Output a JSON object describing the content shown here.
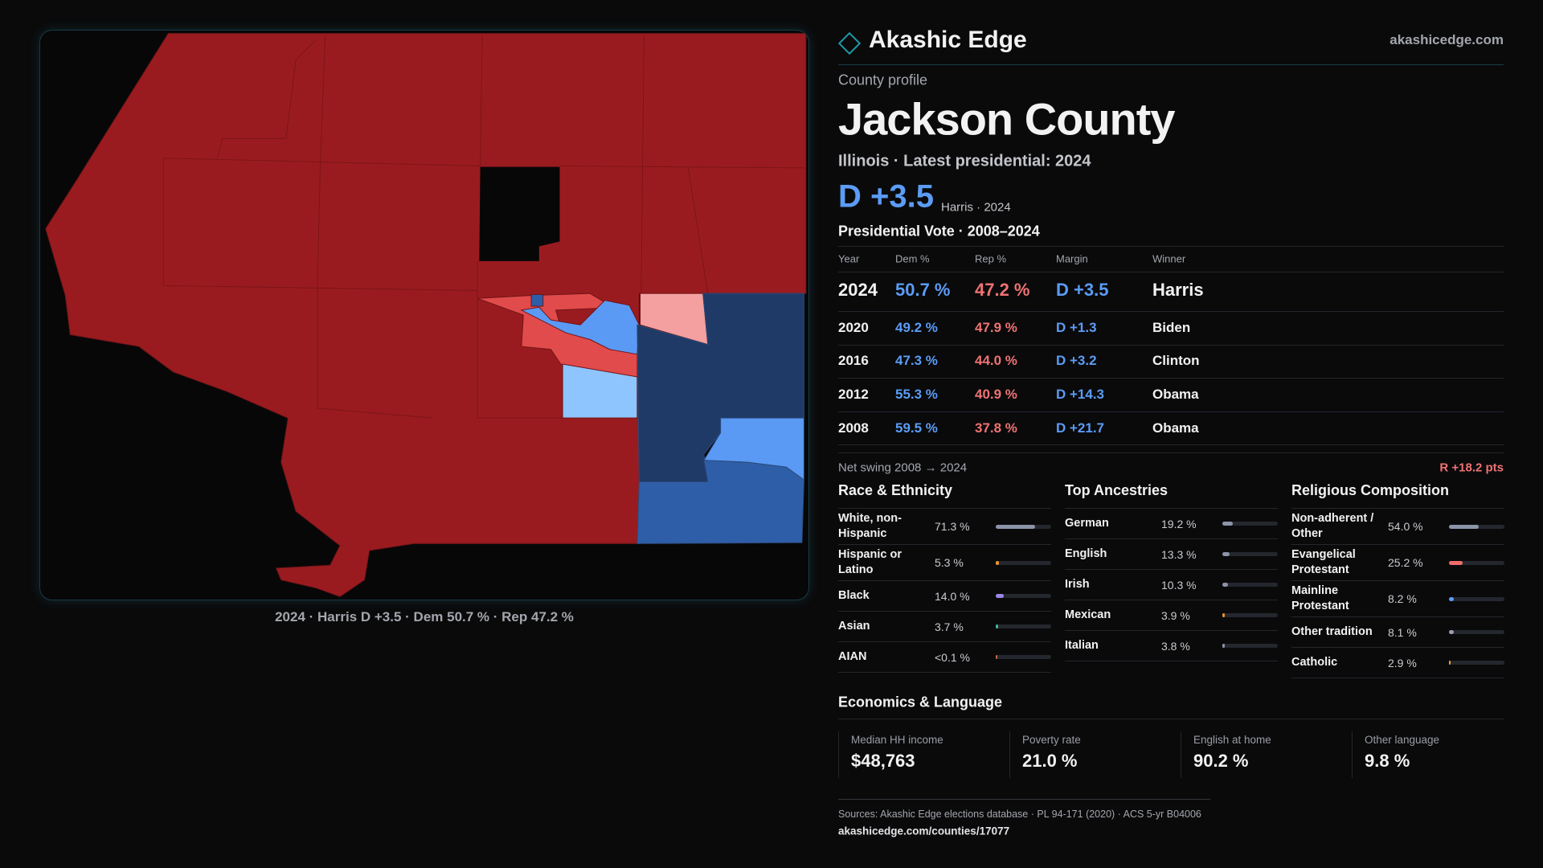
{
  "brand": {
    "name": "Akashic Edge",
    "domain": "akashicedge.com"
  },
  "map": {
    "caption": "2024 · Harris D +3.5 · Dem 50.7 % · Rep 47.2 %"
  },
  "profile": {
    "kicker": "County profile",
    "title": "Jackson County",
    "subtitle": "Illinois · Latest presidential: 2024",
    "margin": "D +3.5",
    "margin_note": "Harris · 2024"
  },
  "votes": {
    "title": "Presidential Vote · 2008–2024",
    "columns": [
      "Year",
      "Dem %",
      "Rep %",
      "Margin",
      "Winner"
    ],
    "rows": [
      [
        "2024",
        "50.7 %",
        "47.2 %",
        "D +3.5",
        "Harris"
      ],
      [
        "2020",
        "49.2 %",
        "47.9 %",
        "D +1.3",
        "Biden"
      ],
      [
        "2016",
        "47.3 %",
        "44.0 %",
        "D +3.2",
        "Clinton"
      ],
      [
        "2012",
        "55.3 %",
        "40.9 %",
        "D +14.3",
        "Obama"
      ],
      [
        "2008",
        "59.5 %",
        "37.8 %",
        "D +21.7",
        "Obama"
      ]
    ]
  },
  "swing": {
    "label": "Net swing 2008 → 2024",
    "value": "R +18.2 pts"
  },
  "demographics": [
    {
      "title": "Race & Ethnicity",
      "xlim": [
        0,
        100
      ],
      "items": [
        {
          "name": "White, non-Hispanic",
          "value": 71.3,
          "value_label": "71.3 %",
          "color": "#8c94a8"
        },
        {
          "name": "Hispanic or Latino",
          "value": 5.3,
          "value_label": "5.3 %",
          "color": "#e8922e"
        },
        {
          "name": "Black",
          "value": 14.0,
          "value_label": "14.0 %",
          "color": "#9b87e8"
        },
        {
          "name": "Asian",
          "value": 3.7,
          "value_label": "3.7 %",
          "color": "#3bb59a"
        },
        {
          "name": "AIAN",
          "value": 0.05,
          "value_label": "<0.1 %",
          "color": "#c46a4a"
        }
      ]
    },
    {
      "title": "Top Ancestries",
      "xlim": [
        0,
        100
      ],
      "items": [
        {
          "name": "German",
          "value": 19.2,
          "value_label": "19.2 %",
          "color": "#8c94a8"
        },
        {
          "name": "English",
          "value": 13.3,
          "value_label": "13.3 %",
          "color": "#8c94a8"
        },
        {
          "name": "Irish",
          "value": 10.3,
          "value_label": "10.3 %",
          "color": "#8c94a8"
        },
        {
          "name": "Mexican",
          "value": 3.9,
          "value_label": "3.9 %",
          "color": "#e8922e"
        },
        {
          "name": "Italian",
          "value": 3.8,
          "value_label": "3.8 %",
          "color": "#8c94a8"
        }
      ]
    },
    {
      "title": "Religious Composition",
      "xlim": [
        0,
        100
      ],
      "items": [
        {
          "name": "Non-adherent / Other",
          "value": 54.0,
          "value_label": "54.0 %",
          "color": "#8c94a8"
        },
        {
          "name": "Evangelical Protestant",
          "value": 25.2,
          "value_label": "25.2 %",
          "color": "#ef6b6b"
        },
        {
          "name": "Mainline Protestant",
          "value": 8.2,
          "value_label": "8.2 %",
          "color": "#5b9cf5"
        },
        {
          "name": "Other tradition",
          "value": 8.1,
          "value_label": "8.1 %",
          "color": "#9aa0ad"
        },
        {
          "name": "Catholic",
          "value": 2.9,
          "value_label": "2.9 %",
          "color": "#e8a62e"
        }
      ]
    }
  ],
  "economics": {
    "title": "Economics & Language",
    "stats": [
      {
        "label": "Median HH income",
        "value": "$48,763"
      },
      {
        "label": "Poverty rate",
        "value": "21.0 %"
      },
      {
        "label": "English at home",
        "value": "90.2 %"
      },
      {
        "label": "Other language",
        "value": "9.8 %"
      }
    ]
  },
  "sources": {
    "text": "Sources: Akashic Edge elections database · PL 94-171 (2020) · ACS 5-yr B04006",
    "url": "akashicedge.com/counties/17077"
  }
}
